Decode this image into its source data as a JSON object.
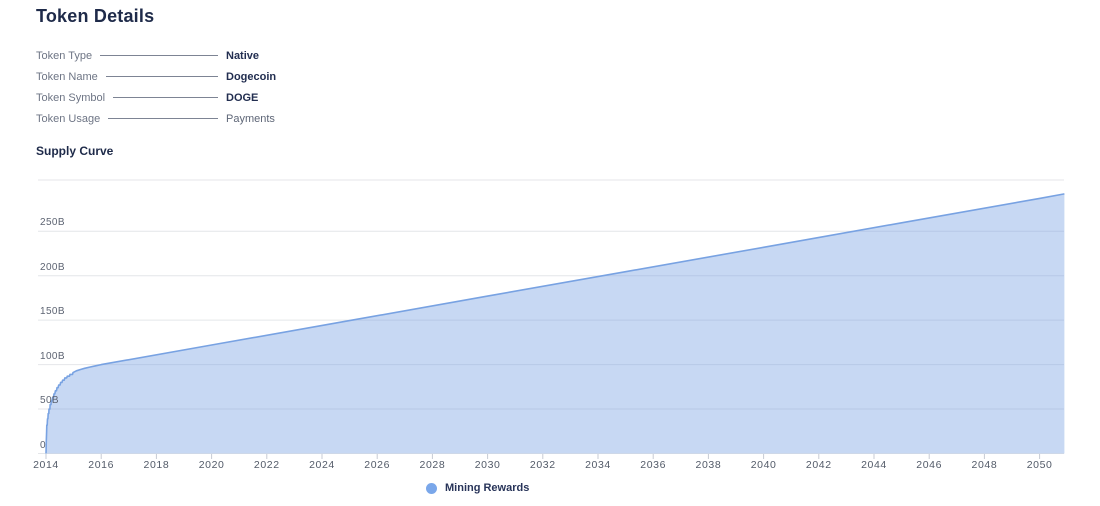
{
  "page": {
    "title": "Token Details"
  },
  "details": {
    "rows": [
      {
        "label": "Token Type",
        "value": "Native"
      },
      {
        "label": "Token Name",
        "value": "Dogecoin"
      },
      {
        "label": "Token Symbol",
        "value": "DOGE"
      },
      {
        "label": "Token Usage",
        "value": "Payments"
      }
    ]
  },
  "chart": {
    "title": "Supply Curve"
  },
  "chart_data": {
    "type": "area",
    "title": "Supply Curve",
    "unit": "B (billions of tokens)",
    "xlim": [
      2014,
      2050.9
    ],
    "ylim": [
      0,
      308
    ],
    "x_ticks": [
      2014,
      2016,
      2018,
      2020,
      2022,
      2024,
      2026,
      2028,
      2030,
      2032,
      2034,
      2036,
      2038,
      2040,
      2042,
      2044,
      2046,
      2048,
      2050
    ],
    "y_ticks": [
      {
        "value": 0,
        "label": "0"
      },
      {
        "value": 50,
        "label": "50B"
      },
      {
        "value": 100,
        "label": "100B"
      },
      {
        "value": 150,
        "label": "150B"
      },
      {
        "value": 200,
        "label": "200B"
      },
      {
        "value": 250,
        "label": "250B"
      }
    ],
    "grid": true,
    "legend_position": "bottom",
    "colors": {
      "stroke": "#78a2e2",
      "fill": "#7aa3e2",
      "fill_opacity": 0.42,
      "legend_dot": "#7aa7ea"
    },
    "series": [
      {
        "name": "Mining Rewards",
        "points": [
          [
            2014.0,
            0
          ],
          [
            2014.01,
            14
          ],
          [
            2014.02,
            24
          ],
          [
            2014.03,
            32
          ],
          [
            2014.045,
            32
          ],
          [
            2014.055,
            39
          ],
          [
            2014.07,
            39
          ],
          [
            2014.08,
            45
          ],
          [
            2014.1,
            45
          ],
          [
            2014.11,
            50
          ],
          [
            2014.14,
            50
          ],
          [
            2014.15,
            55
          ],
          [
            2014.18,
            55
          ],
          [
            2014.19,
            59
          ],
          [
            2014.22,
            59
          ],
          [
            2014.24,
            63
          ],
          [
            2014.27,
            63
          ],
          [
            2014.29,
            67
          ],
          [
            2014.32,
            67
          ],
          [
            2014.34,
            70.5
          ],
          [
            2014.38,
            70.5
          ],
          [
            2014.4,
            74
          ],
          [
            2014.44,
            74
          ],
          [
            2014.46,
            77
          ],
          [
            2014.51,
            77
          ],
          [
            2014.53,
            80
          ],
          [
            2014.58,
            80
          ],
          [
            2014.6,
            82.5
          ],
          [
            2014.66,
            82.5
          ],
          [
            2014.68,
            85
          ],
          [
            2014.75,
            85
          ],
          [
            2014.77,
            87
          ],
          [
            2014.85,
            87
          ],
          [
            2014.87,
            89
          ],
          [
            2014.96,
            89
          ],
          [
            2014.98,
            91
          ],
          [
            2015.1,
            93
          ],
          [
            2015.25,
            94.5
          ],
          [
            2015.4,
            95.8
          ],
          [
            2015.6,
            97.3
          ],
          [
            2015.8,
            98.7
          ],
          [
            2016.0,
            100
          ],
          [
            2020,
            122
          ],
          [
            2025,
            149.5
          ],
          [
            2030,
            177
          ],
          [
            2035,
            204.5
          ],
          [
            2040,
            232
          ],
          [
            2045,
            259.5
          ],
          [
            2050,
            287
          ],
          [
            2050.9,
            292
          ]
        ]
      }
    ]
  }
}
